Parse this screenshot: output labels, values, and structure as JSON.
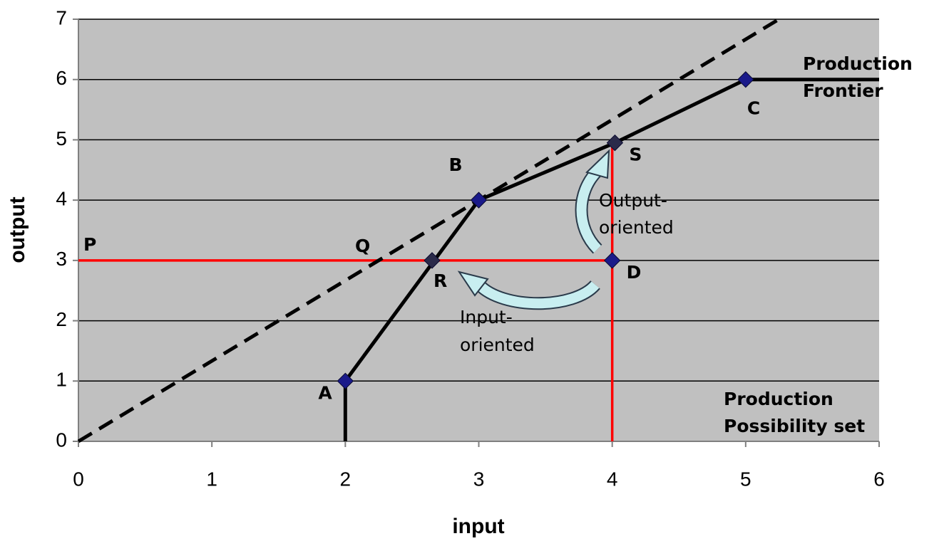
{
  "chart_data": {
    "type": "line",
    "xlabel": "input",
    "ylabel": "output",
    "xlim": [
      0,
      6
    ],
    "ylim": [
      0,
      7
    ],
    "xticks": [
      0,
      1,
      2,
      3,
      4,
      5,
      6
    ],
    "yticks": [
      0,
      1,
      2,
      3,
      4,
      5,
      6,
      7
    ],
    "grid": true,
    "series": [
      {
        "color": "#ff0000",
        "dash": false,
        "x": [
          0,
          4
        ],
        "values": [
          3,
          3
        ]
      },
      {
        "color": "#ff0000",
        "dash": false,
        "x": [
          4,
          4
        ],
        "values": [
          0,
          4.95
        ]
      },
      {
        "color": "#000000",
        "dash": true,
        "x": [
          0,
          5.25
        ],
        "values": [
          0,
          7
        ]
      },
      {
        "color": "#000000",
        "dash": false,
        "x": [
          2,
          2,
          3,
          4.02,
          5,
          6
        ],
        "values": [
          0,
          1,
          4,
          4.95,
          6,
          6
        ]
      }
    ],
    "points": [
      {
        "label": "A",
        "x": 2,
        "y": 1,
        "color": "#1a1a8a"
      },
      {
        "label": "B",
        "x": 3,
        "y": 4,
        "color": "#1a1a8a"
      },
      {
        "label": "C",
        "x": 5,
        "y": 6,
        "color": "#1a1a8a"
      },
      {
        "label": "D",
        "x": 4,
        "y": 3,
        "color": "#1a1a8a"
      },
      {
        "label": "R",
        "x": 2.65,
        "y": 3,
        "color": "#2a2a4a"
      },
      {
        "label": "S",
        "x": 4.02,
        "y": 4.95,
        "color": "#2a2a4a"
      }
    ],
    "labels": [
      "P",
      "Q"
    ],
    "annotations": {
      "frontier": [
        "Production",
        "Frontier"
      ],
      "possibility": [
        "Production",
        "Possibility set"
      ],
      "output": [
        "Output-",
        "oriented"
      ],
      "input": [
        "Input-",
        "oriented"
      ]
    }
  }
}
